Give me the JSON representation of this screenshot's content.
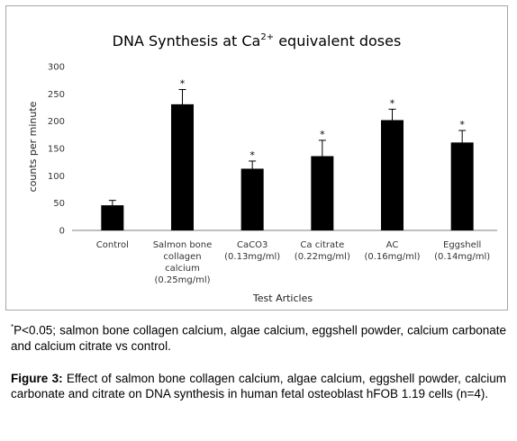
{
  "chart_data": {
    "type": "bar",
    "title": "DNA Synthesis at Ca",
    "title_superscript": "2+",
    "title_suffix": " equivalent doses",
    "xlabel": "Test Articles",
    "ylabel": "counts per minute",
    "ylim": [
      0,
      300
    ],
    "yticks": [
      "0",
      "50",
      "100",
      "150",
      "200",
      "250",
      "300"
    ],
    "grid": false,
    "legend": "none",
    "bar_color": "#000000",
    "categories": [
      [
        "Control"
      ],
      [
        "Salmon bone",
        "collagen",
        "calcium",
        "(0.25mg/ml)"
      ],
      [
        "CaCO3",
        "(0.13mg/ml)"
      ],
      [
        "Ca citrate",
        "(0.22mg/ml)"
      ],
      [
        "AC",
        "(0.16mg/ml)"
      ],
      [
        "Eggshell",
        "(0.14mg/ml)"
      ]
    ],
    "values": [
      46,
      231,
      113,
      136,
      202,
      161
    ],
    "errors": [
      9,
      27,
      14,
      29,
      20,
      22
    ],
    "significance": [
      "",
      "*",
      "*",
      "*",
      "*",
      "*"
    ]
  },
  "footnote": {
    "marker": "*",
    "text": "P<0.05; salmon bone collagen calcium, algae calcium, eggshell powder, calcium carbonate and calcium citrate vs control."
  },
  "caption": {
    "label": "Figure 3:",
    "text": " Effect of salmon bone collagen calcium, algae calcium, eggshell powder, calcium carbonate and citrate on DNA synthesis in human fetal osteoblast hFOB 1.19 cells (n=4)."
  }
}
